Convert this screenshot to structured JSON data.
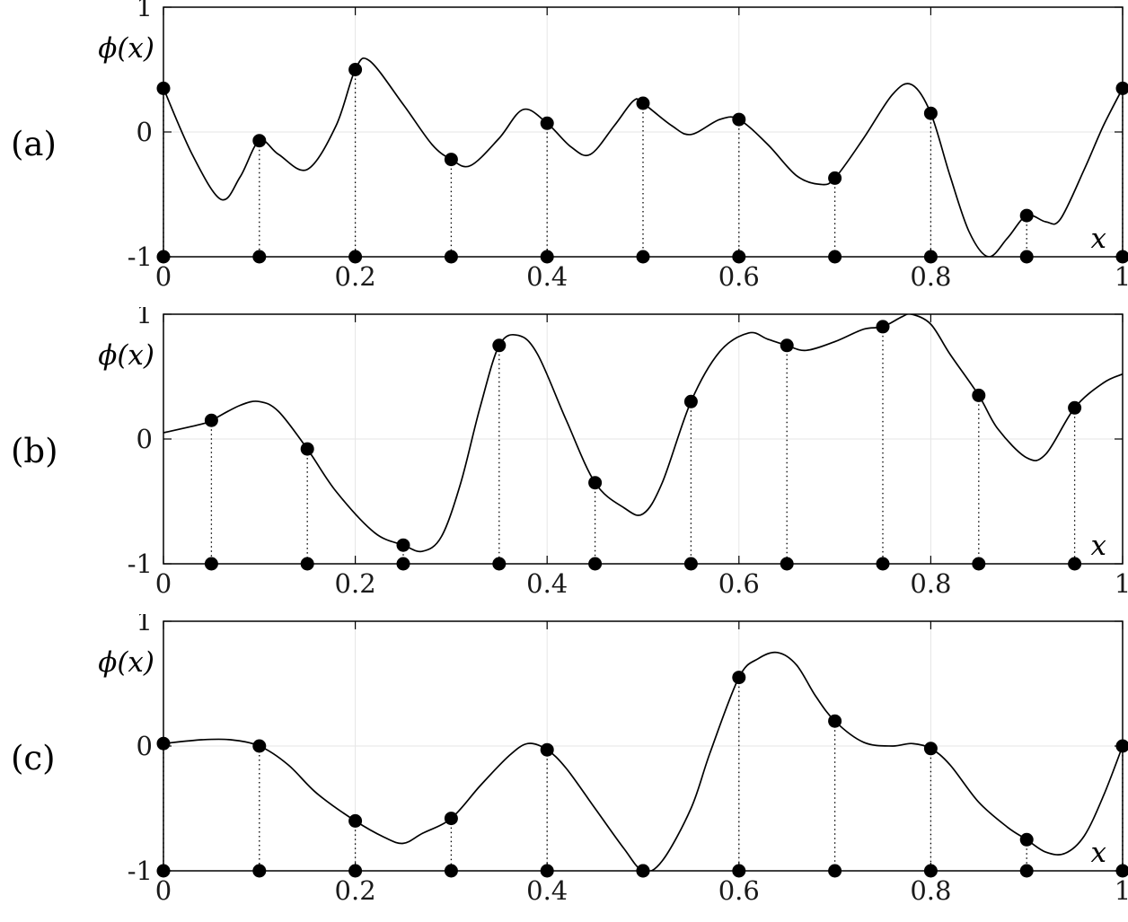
{
  "style": {
    "page_bg": "#ffffff",
    "plot_bg": "#ffffff",
    "axis_color": "#000000",
    "grid_color": "#e6e6e6",
    "curve_color": "#000000",
    "marker_color": "#000000",
    "tick_label_color": "#1a1a1a"
  },
  "chart_data": [
    {
      "type": "line",
      "panel_label": "(a)",
      "ylabel": "ϕ(x)",
      "xlabel": "x",
      "xlim": [
        0,
        1
      ],
      "ylim": [
        -1,
        1
      ],
      "xticks": [
        0,
        0.2,
        0.4,
        0.6,
        0.8,
        1
      ],
      "xtick_labels": [
        "0",
        "0.2",
        "0.4",
        "0.6",
        "0.8",
        "1"
      ],
      "yticks": [
        1,
        0,
        -1
      ],
      "ytick_labels": [
        "1",
        "0",
        "-1"
      ],
      "grid": true,
      "baseline": -1,
      "samples": [
        [
          0,
          0.35
        ],
        [
          0.1,
          -0.07
        ],
        [
          0.2,
          0.5
        ],
        [
          0.3,
          -0.22
        ],
        [
          0.4,
          0.07
        ],
        [
          0.5,
          0.23
        ],
        [
          0.6,
          0.1
        ],
        [
          0.7,
          -0.37
        ],
        [
          0.8,
          0.15
        ],
        [
          0.9,
          -0.67
        ],
        [
          1,
          0.35
        ]
      ],
      "curve": [
        [
          0,
          0.35
        ],
        [
          0.03,
          -0.18
        ],
        [
          0.06,
          -0.54
        ],
        [
          0.08,
          -0.36
        ],
        [
          0.1,
          -0.07
        ],
        [
          0.12,
          -0.18
        ],
        [
          0.15,
          -0.3
        ],
        [
          0.18,
          0.05
        ],
        [
          0.2,
          0.5
        ],
        [
          0.215,
          0.57
        ],
        [
          0.25,
          0.22
        ],
        [
          0.28,
          -0.1
        ],
        [
          0.3,
          -0.22
        ],
        [
          0.32,
          -0.27
        ],
        [
          0.35,
          -0.05
        ],
        [
          0.375,
          0.18
        ],
        [
          0.4,
          0.07
        ],
        [
          0.425,
          -0.12
        ],
        [
          0.445,
          -0.18
        ],
        [
          0.47,
          0.05
        ],
        [
          0.49,
          0.25
        ],
        [
          0.5,
          0.23
        ],
        [
          0.53,
          0.05
        ],
        [
          0.55,
          -0.02
        ],
        [
          0.58,
          0.1
        ],
        [
          0.6,
          0.1
        ],
        [
          0.63,
          -0.1
        ],
        [
          0.66,
          -0.35
        ],
        [
          0.685,
          -0.42
        ],
        [
          0.7,
          -0.37
        ],
        [
          0.73,
          -0.05
        ],
        [
          0.76,
          0.3
        ],
        [
          0.78,
          0.38
        ],
        [
          0.8,
          0.15
        ],
        [
          0.82,
          -0.35
        ],
        [
          0.84,
          -0.8
        ],
        [
          0.86,
          -1.0
        ],
        [
          0.88,
          -0.85
        ],
        [
          0.9,
          -0.67
        ],
        [
          0.92,
          -0.72
        ],
        [
          0.935,
          -0.7
        ],
        [
          0.96,
          -0.3
        ],
        [
          0.98,
          0.05
        ],
        [
          1,
          0.35
        ]
      ]
    },
    {
      "type": "line",
      "panel_label": "(b)",
      "ylabel": "ϕ(x)",
      "xlabel": "x",
      "xlim": [
        0,
        1
      ],
      "ylim": [
        -1,
        1
      ],
      "xticks": [
        0,
        0.2,
        0.4,
        0.6,
        0.8,
        1
      ],
      "xtick_labels": [
        "0",
        "0.2",
        "0.4",
        "0.6",
        "0.8",
        "1"
      ],
      "yticks": [
        1,
        0,
        -1
      ],
      "ytick_labels": [
        "1",
        "0",
        "-1"
      ],
      "grid": true,
      "baseline": -1,
      "samples": [
        [
          0.05,
          0.15
        ],
        [
          0.15,
          -0.08
        ],
        [
          0.25,
          -0.85
        ],
        [
          0.35,
          0.75
        ],
        [
          0.45,
          -0.35
        ],
        [
          0.55,
          0.3
        ],
        [
          0.65,
          0.75
        ],
        [
          0.75,
          0.9
        ],
        [
          0.85,
          0.35
        ],
        [
          0.95,
          0.25
        ]
      ],
      "curve": [
        [
          0,
          0.05
        ],
        [
          0.04,
          0.12
        ],
        [
          0.05,
          0.15
        ],
        [
          0.08,
          0.27
        ],
        [
          0.1,
          0.3
        ],
        [
          0.12,
          0.22
        ],
        [
          0.15,
          -0.08
        ],
        [
          0.18,
          -0.42
        ],
        [
          0.22,
          -0.75
        ],
        [
          0.25,
          -0.85
        ],
        [
          0.27,
          -0.9
        ],
        [
          0.29,
          -0.78
        ],
        [
          0.31,
          -0.35
        ],
        [
          0.33,
          0.25
        ],
        [
          0.35,
          0.75
        ],
        [
          0.37,
          0.83
        ],
        [
          0.39,
          0.68
        ],
        [
          0.42,
          0.15
        ],
        [
          0.45,
          -0.35
        ],
        [
          0.48,
          -0.55
        ],
        [
          0.5,
          -0.6
        ],
        [
          0.52,
          -0.35
        ],
        [
          0.55,
          0.3
        ],
        [
          0.58,
          0.7
        ],
        [
          0.61,
          0.85
        ],
        [
          0.63,
          0.8
        ],
        [
          0.65,
          0.75
        ],
        [
          0.67,
          0.71
        ],
        [
          0.7,
          0.78
        ],
        [
          0.73,
          0.88
        ],
        [
          0.75,
          0.9
        ],
        [
          0.77,
          0.98
        ],
        [
          0.78,
          1.0
        ],
        [
          0.8,
          0.92
        ],
        [
          0.82,
          0.68
        ],
        [
          0.85,
          0.35
        ],
        [
          0.87,
          0.08
        ],
        [
          0.9,
          -0.15
        ],
        [
          0.92,
          -0.12
        ],
        [
          0.95,
          0.25
        ],
        [
          0.98,
          0.45
        ],
        [
          1,
          0.52
        ]
      ]
    },
    {
      "type": "line",
      "panel_label": "(c)",
      "ylabel": "ϕ(x)",
      "xlabel": "x",
      "xlim": [
        0,
        1
      ],
      "ylim": [
        -1,
        1
      ],
      "xticks": [
        0,
        0.2,
        0.4,
        0.6,
        0.8,
        1
      ],
      "xtick_labels": [
        "0",
        "0.2",
        "0.4",
        "0.6",
        "0.8",
        "1"
      ],
      "yticks": [
        1,
        0,
        -1
      ],
      "ytick_labels": [
        "1",
        "0",
        "-1"
      ],
      "grid": true,
      "baseline": -1,
      "samples": [
        [
          0,
          0.02
        ],
        [
          0.1,
          0
        ],
        [
          0.2,
          -0.6
        ],
        [
          0.3,
          -0.58
        ],
        [
          0.4,
          -0.03
        ],
        [
          0.5,
          -1
        ],
        [
          0.6,
          0.55
        ],
        [
          0.7,
          0.2
        ],
        [
          0.8,
          -0.02
        ],
        [
          0.9,
          -0.75
        ],
        [
          1,
          0
        ]
      ],
      "curve": [
        [
          0,
          0.02
        ],
        [
          0.04,
          0.05
        ],
        [
          0.07,
          0.05
        ],
        [
          0.1,
          0
        ],
        [
          0.13,
          -0.15
        ],
        [
          0.16,
          -0.38
        ],
        [
          0.2,
          -0.6
        ],
        [
          0.23,
          -0.73
        ],
        [
          0.25,
          -0.78
        ],
        [
          0.27,
          -0.7
        ],
        [
          0.3,
          -0.58
        ],
        [
          0.33,
          -0.32
        ],
        [
          0.36,
          -0.08
        ],
        [
          0.38,
          0.02
        ],
        [
          0.4,
          -0.03
        ],
        [
          0.42,
          -0.18
        ],
        [
          0.45,
          -0.5
        ],
        [
          0.48,
          -0.82
        ],
        [
          0.5,
          -1.0
        ],
        [
          0.52,
          -0.92
        ],
        [
          0.55,
          -0.5
        ],
        [
          0.57,
          -0.05
        ],
        [
          0.6,
          0.55
        ],
        [
          0.62,
          0.7
        ],
        [
          0.64,
          0.75
        ],
        [
          0.66,
          0.65
        ],
        [
          0.68,
          0.4
        ],
        [
          0.7,
          0.2
        ],
        [
          0.73,
          0.03
        ],
        [
          0.76,
          0
        ],
        [
          0.78,
          0.02
        ],
        [
          0.8,
          -0.02
        ],
        [
          0.82,
          -0.15
        ],
        [
          0.85,
          -0.45
        ],
        [
          0.88,
          -0.65
        ],
        [
          0.9,
          -0.75
        ],
        [
          0.92,
          -0.85
        ],
        [
          0.94,
          -0.86
        ],
        [
          0.96,
          -0.72
        ],
        [
          0.98,
          -0.4
        ],
        [
          1,
          0
        ]
      ]
    }
  ]
}
